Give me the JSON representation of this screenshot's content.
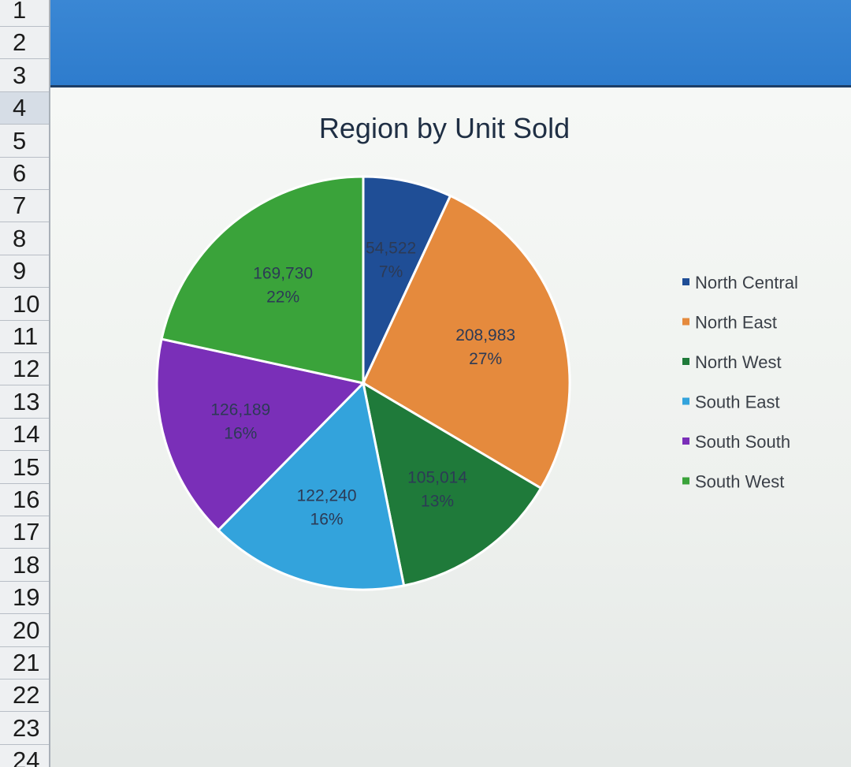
{
  "row_headers": [
    "1",
    "2",
    "3",
    "4",
    "5",
    "6",
    "7",
    "8",
    "9",
    "10",
    "11",
    "12",
    "13",
    "14",
    "15",
    "16",
    "17",
    "18",
    "19",
    "20",
    "21",
    "22",
    "23",
    "24"
  ],
  "selected_row": "4",
  "chart_data": {
    "type": "pie",
    "title": "Region by Unit Sold",
    "legend_position": "right",
    "slices": [
      {
        "name": "North Central",
        "value": 54522,
        "value_label": "54,522",
        "percent_label": "7%",
        "color": "#1f4e96"
      },
      {
        "name": "North East",
        "value": 208983,
        "value_label": "208,983",
        "percent_label": "27%",
        "color": "#e58a3d"
      },
      {
        "name": "North West",
        "value": 105014,
        "value_label": "105,014",
        "percent_label": "13%",
        "color": "#1f7a3a"
      },
      {
        "name": "South East",
        "value": 122240,
        "value_label": "122,240",
        "percent_label": "16%",
        "color": "#33a3dc"
      },
      {
        "name": "South South",
        "value": 126189,
        "value_label": "126,189",
        "percent_label": "16%",
        "color": "#7a2fb8"
      },
      {
        "name": "South West",
        "value": 169730,
        "value_label": "169,730",
        "percent_label": "22%",
        "color": "#3aa33a"
      }
    ]
  }
}
